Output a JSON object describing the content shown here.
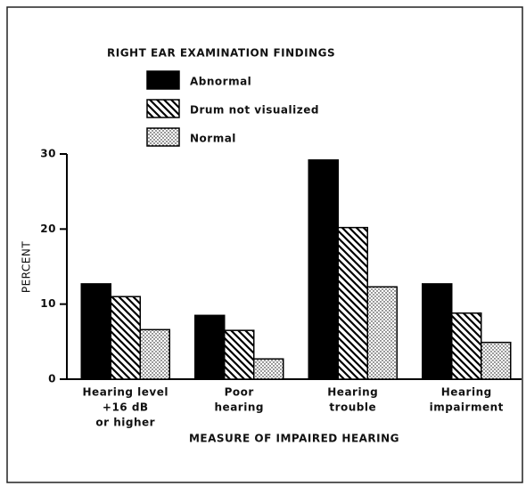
{
  "chart_data": {
    "type": "bar",
    "title": "RIGHT EAR EXAMINATION FINDINGS",
    "x_label": "MEASURE OF IMPAIRED HEARING",
    "y_label": "PERCENT",
    "categories": [
      [
        "Hearing level",
        "+16 dB",
        "or higher"
      ],
      [
        "Poor",
        "hearing"
      ],
      [
        "Hearing",
        "trouble"
      ],
      [
        "Hearing",
        "impairment"
      ]
    ],
    "series": [
      {
        "name": "Abnormal",
        "color": "#000000",
        "pattern": "solid",
        "values": [
          12.7,
          8.5,
          29.2,
          12.7
        ]
      },
      {
        "name": "Drum not visualized",
        "color": "#000000",
        "pattern": "hatch",
        "values": [
          11.0,
          6.5,
          20.2,
          8.8
        ]
      },
      {
        "name": "Normal",
        "color": "#000000",
        "pattern": "dots",
        "values": [
          6.6,
          2.7,
          12.3,
          4.9
        ]
      }
    ],
    "ylim": [
      0,
      30
    ],
    "yticks": [
      0,
      10,
      20,
      30
    ]
  }
}
